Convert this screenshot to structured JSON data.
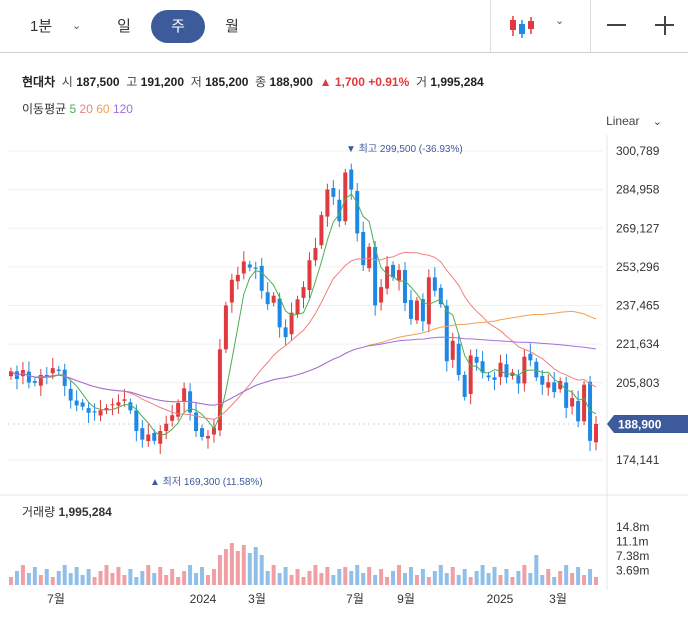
{
  "toolbar": {
    "interval": "1분",
    "tabs": [
      "일",
      "주",
      "월"
    ],
    "selected_tab": "주",
    "chart_type_icon": "candlestick-icon"
  },
  "info": {
    "name": "현대차",
    "open_label": "시",
    "open": "187,500",
    "high_label": "고",
    "high": "191,200",
    "low_label": "저",
    "low": "185,200",
    "close_label": "종",
    "close": "188,900",
    "change": "1,700",
    "change_pct": "+0.91%",
    "vol_label": "거",
    "volume": "1,995,284"
  },
  "ma": {
    "label": "이동평균",
    "periods": [
      "5",
      "20",
      "60",
      "120"
    ],
    "colors": [
      "#4caf50",
      "#f08080",
      "#f0a050",
      "#a070e0"
    ]
  },
  "scale_mode": "Linear",
  "colors": {
    "up": "#e0393e",
    "down": "#1e88e5",
    "accent": "#3d5b9a"
  },
  "chart_data": {
    "type": "candlestick",
    "y_ticks": [
      "300,789",
      "284,958",
      "269,127",
      "253,296",
      "237,465",
      "221,634",
      "205,803",
      "174,141"
    ],
    "y_tick_values": [
      300789,
      284958,
      269127,
      253296,
      237465,
      221634,
      205803,
      174141
    ],
    "x_ticks": [
      "7월",
      "2024",
      "3월",
      "7월",
      "9월",
      "2025",
      "3월"
    ],
    "current_price": "188,900",
    "max_annotation": "최고 299,500 (-36.93%)",
    "min_annotation": "최저 169,300 (11.58%)",
    "ohlc_close": [
      210500,
      207300,
      211000,
      205900,
      205800,
      209000,
      208500,
      211800,
      210600,
      204500,
      198500,
      196500,
      196000,
      193500,
      193600,
      194500,
      195500,
      197000,
      197800,
      199000,
      194500,
      186000,
      182500,
      184600,
      182000,
      186000,
      189000,
      192500,
      197500,
      203500,
      193600,
      186000,
      183600,
      184000,
      187500,
      219500,
      237500,
      248000,
      250000,
      255500,
      253000,
      252500,
      243500,
      238000,
      241500,
      228500,
      224500,
      234500,
      240000,
      245000,
      256000,
      261000,
      274500,
      285000,
      282000,
      272000,
      292000,
      285000,
      267000,
      254000,
      261500,
      237500,
      245000,
      253500,
      249000,
      252000,
      238500,
      232000,
      239500,
      231000,
      249000,
      243500,
      238000,
      214600,
      223000,
      209000,
      200000,
      217000,
      214000,
      210000,
      208000,
      207000,
      214000,
      208000,
      210000,
      205500,
      216500,
      215000,
      208000,
      205000,
      206000,
      202000,
      206500,
      195500,
      199500,
      190000,
      205000,
      182000,
      188900
    ],
    "volume_label": "거래량",
    "volume": "1,995,284",
    "volume_ticks": [
      "14.8m",
      "11.1m",
      "7.38m",
      "3.69m"
    ],
    "volume_tick_values": [
      14.8,
      11.1,
      7.38,
      3.69
    ]
  }
}
